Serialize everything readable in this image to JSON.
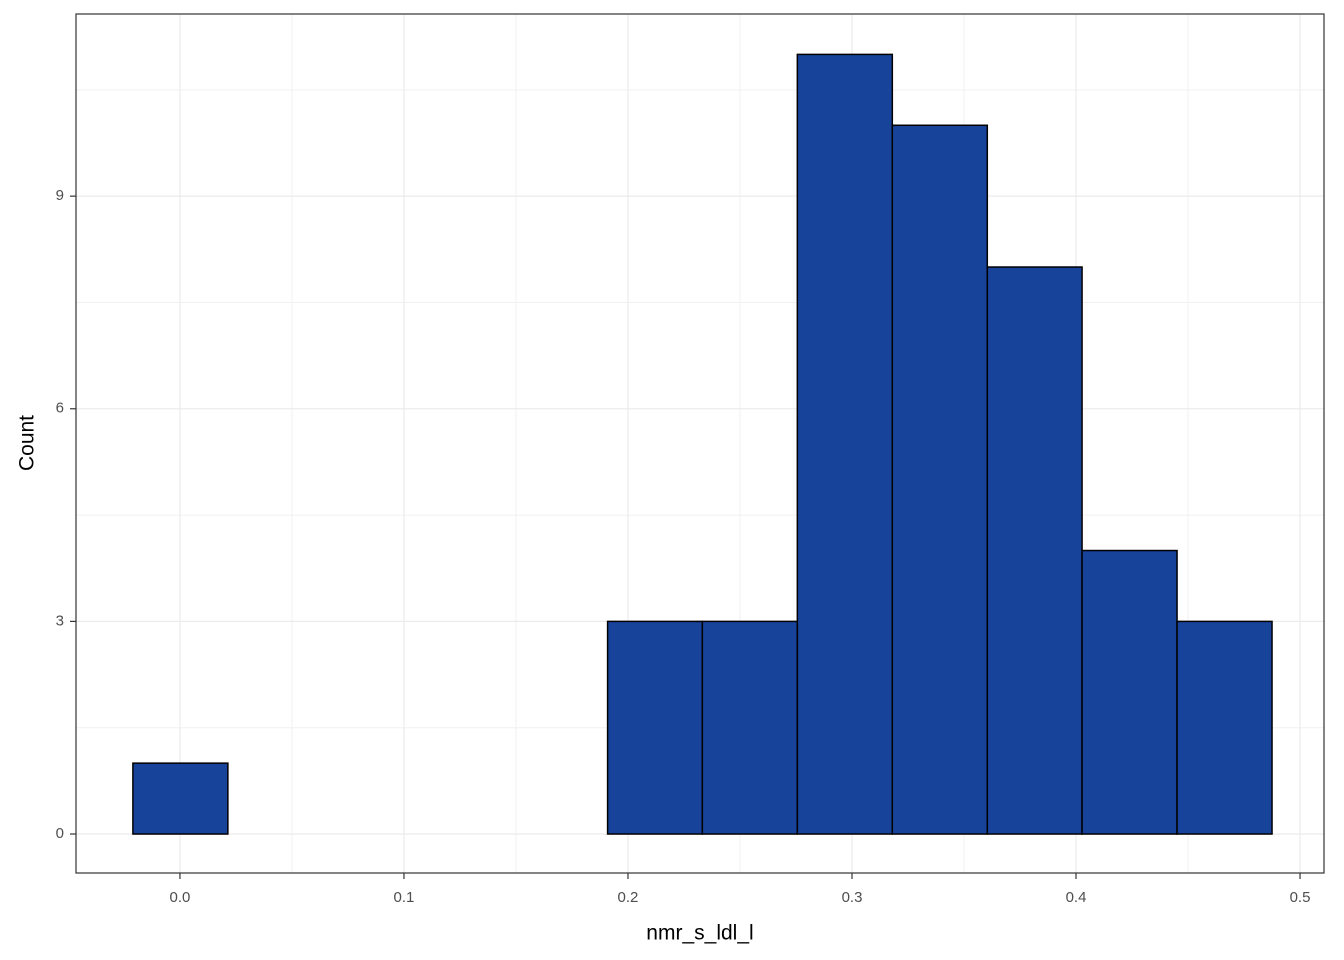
{
  "chart_data": {
    "type": "histogram",
    "x_label": "nmr_s_ldl_l",
    "y_label": "Count",
    "bins": [
      -0.021,
      0.0214,
      0.0637,
      0.1061,
      0.1485,
      0.1909,
      0.2332,
      0.2756,
      0.318,
      0.3604,
      0.4027,
      0.4451,
      0.4875
    ],
    "values": [
      1,
      0,
      0,
      0,
      0,
      3,
      3,
      11,
      10,
      8,
      4,
      3
    ],
    "color": "#18439a",
    "xlim": [
      -0.0464,
      0.5107
    ],
    "xticks": [
      {
        "value": 0,
        "label": "0.0"
      },
      0.1,
      0.2,
      0.3,
      0.4,
      0.5
    ],
    "ylim": [
      -0.55,
      11.57
    ],
    "yticks": [
      0,
      3,
      6,
      9
    ],
    "grid": true,
    "minor_grid": true
  }
}
